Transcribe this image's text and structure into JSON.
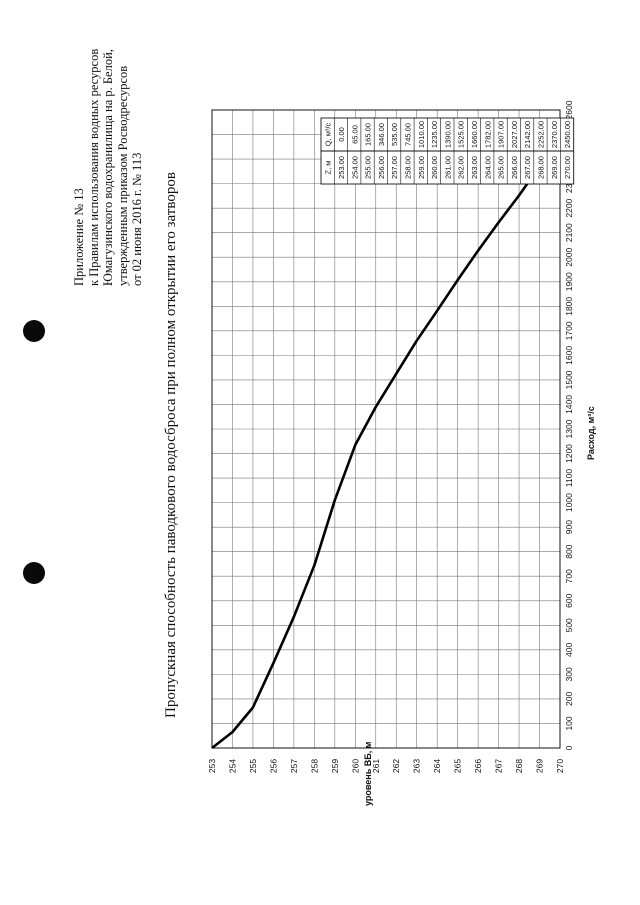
{
  "header": {
    "line1": "Приложение № 13",
    "line2": "к Правилам использования водных ресурсов",
    "line3": "Юмагузинского водохранилища на р. Белой,",
    "line4": "утвержденным приказом Росводресурсов",
    "line5": "от 02 июня 2016 г. № 113"
  },
  "chart_data": {
    "type": "line",
    "title": "Пропускная способность паводкового водосброса при полном открытии его затворов",
    "xlabel": "Расход, м³/с",
    "ylabel": "уровень ВБ, м",
    "xlim": [
      0,
      2600
    ],
    "ylim": [
      253,
      270
    ],
    "grid": true,
    "x_ticks": [
      0,
      100,
      200,
      300,
      400,
      500,
      600,
      700,
      800,
      900,
      1000,
      1100,
      1200,
      1300,
      1400,
      1500,
      1600,
      1700,
      1800,
      1900,
      2000,
      2100,
      2200,
      2300,
      2400,
      2500,
      2600
    ],
    "y_ticks": [
      253,
      254,
      255,
      256,
      257,
      258,
      259,
      260,
      261,
      262,
      263,
      264,
      265,
      266,
      267,
      268,
      269,
      270
    ],
    "table_headers": [
      "Z, м",
      "Q, м³/с"
    ],
    "table": [
      [
        "253.00",
        "0.00"
      ],
      [
        "254.00",
        "65.00"
      ],
      [
        "255.00",
        "165.00"
      ],
      [
        "256.00",
        "346.00"
      ],
      [
        "257.00",
        "535.00"
      ],
      [
        "258.00",
        "745.00"
      ],
      [
        "259.00",
        "1010.00"
      ],
      [
        "260.00",
        "1235.00"
      ],
      [
        "261.00",
        "1390.00"
      ],
      [
        "262.00",
        "1525.00"
      ],
      [
        "263.00",
        "1660.00"
      ],
      [
        "264.00",
        "1782.00"
      ],
      [
        "265.00",
        "1907.00"
      ],
      [
        "266.00",
        "2027.00"
      ],
      [
        "267.00",
        "2142.00"
      ],
      [
        "268.00",
        "2252.00"
      ],
      [
        "269.00",
        "2370.00"
      ],
      [
        "270.00",
        "2450.00"
      ]
    ],
    "points": [
      {
        "z": 253,
        "q": 0
      },
      {
        "z": 254,
        "q": 65
      },
      {
        "z": 255,
        "q": 165
      },
      {
        "z": 256,
        "q": 346
      },
      {
        "z": 257,
        "q": 535
      },
      {
        "z": 258,
        "q": 745
      },
      {
        "z": 259,
        "q": 1010
      },
      {
        "z": 260,
        "q": 1235
      },
      {
        "z": 261,
        "q": 1390
      },
      {
        "z": 262,
        "q": 1525
      },
      {
        "z": 263,
        "q": 1660
      },
      {
        "z": 264,
        "q": 1782
      },
      {
        "z": 265,
        "q": 1907
      },
      {
        "z": 266,
        "q": 2027
      },
      {
        "z": 267,
        "q": 2142
      },
      {
        "z": 268,
        "q": 2252
      },
      {
        "z": 269,
        "q": 2370
      },
      {
        "z": 270,
        "q": 2450
      }
    ]
  }
}
